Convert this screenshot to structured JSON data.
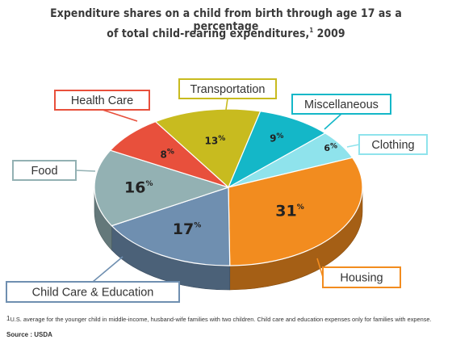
{
  "title_line1": "Expenditure shares on a child from birth through age 17 as a percentage",
  "title_line2": "of total child-rearing expenditures,",
  "title_sup": "1",
  "title_year": " 2009",
  "footnote_sup": "1",
  "footnote": "U.S. average for the younger child in middle-income, husband-wife families with two children. Child care and education expenses only for families with expense.",
  "source": "Source : USDA",
  "chart_data": {
    "type": "pie",
    "title": "Expenditure shares on a child from birth through age 17 as a percentage of total child-rearing expenditures, 2009",
    "value_suffix": "%",
    "slices": [
      {
        "label": "Transportation",
        "value": 13,
        "color": "#c8bb1f"
      },
      {
        "label": "Miscellaneous",
        "value": 9,
        "color": "#14b7c8"
      },
      {
        "label": "Clothing",
        "value": 6,
        "color": "#8fe3ec"
      },
      {
        "label": "Housing",
        "value": 31,
        "color": "#f28c1f"
      },
      {
        "label": "Child Care & Education",
        "value": 17,
        "color": "#6f8fb0"
      },
      {
        "label": "Food",
        "value": 16,
        "color": "#93b1b3"
      },
      {
        "label": "Health Care",
        "value": 8,
        "color": "#e8503c"
      }
    ]
  }
}
